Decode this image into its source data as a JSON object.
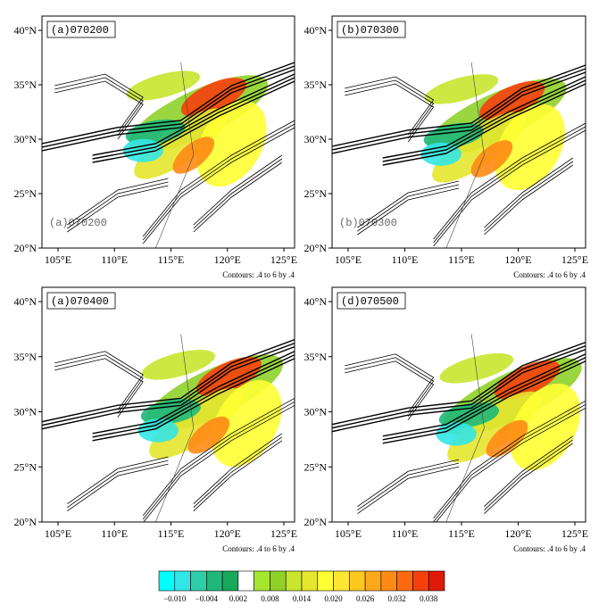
{
  "panels": [
    {
      "label": "(a)070200",
      "ghost_label": "(a)070200",
      "lat_ticks": [
        "40°N",
        "35°N",
        "30°N",
        "25°N",
        "20°N"
      ],
      "lon_ticks": [
        "105°E",
        "110°E",
        "115°E",
        "120°E",
        "125°E"
      ],
      "note": "Contours: .4 to 6 by .4"
    },
    {
      "label": "(b)070300",
      "ghost_label": "(b)070300",
      "lat_ticks": [
        "40°N",
        "35°N",
        "30°N",
        "25°N",
        "20°N"
      ],
      "lon_ticks": [
        "105°E",
        "110°E",
        "115°E",
        "120°E",
        "125°E"
      ],
      "note": "Contours: .4 to 6 by .4"
    },
    {
      "label": "(a)070400",
      "lat_ticks": [
        "40°N",
        "35°N",
        "30°N",
        "25°N",
        "20°N"
      ],
      "lon_ticks": [
        "105°E",
        "110°E",
        "115°E",
        "120°E",
        "125°E"
      ],
      "note": "Contours: .4 to 6 by .4"
    },
    {
      "label": "(d)070500",
      "lat_ticks": [
        "40°N",
        "35°N",
        "30°N",
        "25°N",
        "20°N"
      ],
      "lon_ticks": [
        "105°E",
        "110°E",
        "115°E",
        "120°E",
        "125°E"
      ],
      "note": "Contours: .4 to 6 by .4"
    }
  ],
  "colorbar": {
    "colors": [
      "#00ffff",
      "#33e6e6",
      "#2ecfa8",
      "#1fb87a",
      "#17a85a",
      "#ffffff",
      "#a6e62e",
      "#8fd12a",
      "#c8e62e",
      "#e6e62e",
      "#ffff33",
      "#ffe633",
      "#ffc81f",
      "#ffa81a",
      "#ff8a14",
      "#ff6a10",
      "#f5400c",
      "#e01a08"
    ],
    "labels": [
      "−0.010",
      "−0.004",
      "0.002",
      "0.008",
      "0.014",
      "0.020",
      "0.026",
      "0.032",
      "0.038"
    ]
  }
}
